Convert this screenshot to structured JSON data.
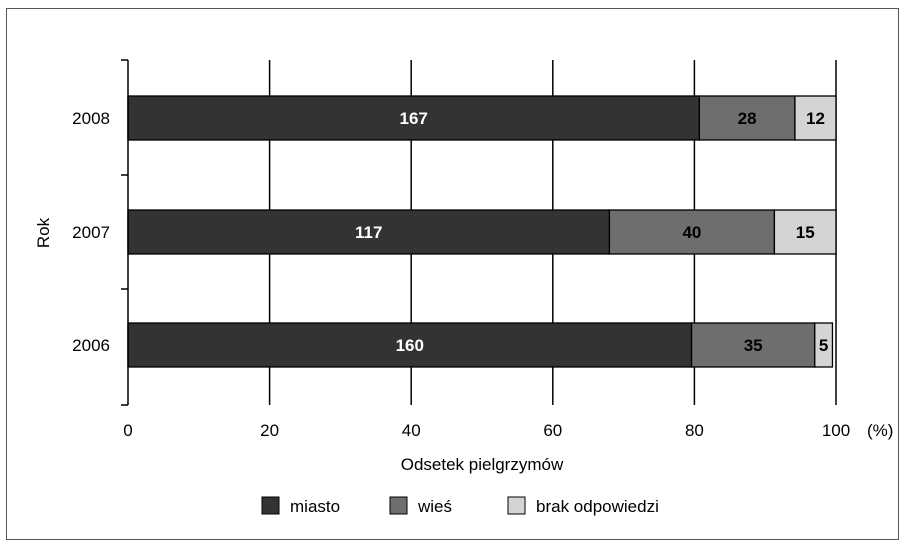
{
  "chart_data": {
    "type": "bar",
    "orientation": "horizontal",
    "stacked": true,
    "title": "",
    "xlabel": "Odsetek pielgrzymów",
    "xunit": "(%)",
    "ylabel": "Rok",
    "xlim": [
      0,
      100
    ],
    "xticks": [
      "0",
      "20",
      "40",
      "60",
      "80",
      "100"
    ],
    "categories": [
      "2008",
      "2007",
      "2006"
    ],
    "series": [
      {
        "name": "miasto",
        "color": "#333333",
        "values": [
          80.7,
          68.0,
          79.6
        ],
        "labels": [
          "167",
          "117",
          "160"
        ]
      },
      {
        "name": "wieś",
        "color": "#6e6e6e",
        "values": [
          13.5,
          23.3,
          17.4
        ],
        "labels": [
          "28",
          "40",
          "35"
        ]
      },
      {
        "name": "brak odpowiedzi",
        "color": "#d4d4d4",
        "values": [
          5.8,
          8.7,
          2.5
        ],
        "labels": [
          "12",
          "15",
          "5"
        ]
      }
    ],
    "grid": true,
    "legend_position": "bottom"
  }
}
